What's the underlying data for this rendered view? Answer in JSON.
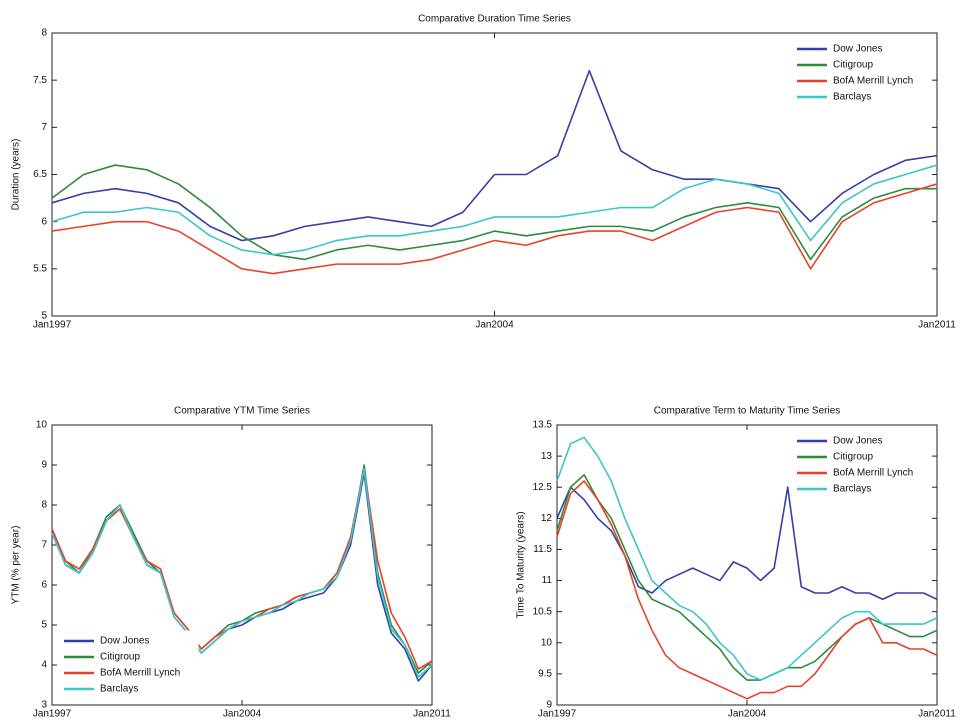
{
  "chart_data": [
    {
      "type": "line",
      "title": "Comparative Duration Time Series",
      "ylabel": "Duration (years)",
      "x": [
        1997,
        1997.5,
        1998,
        1998.5,
        1999,
        1999.5,
        2000,
        2000.5,
        2001,
        2001.5,
        2002,
        2002.5,
        2003,
        2003.5,
        2004,
        2004.5,
        2005,
        2005.5,
        2006,
        2006.5,
        2007,
        2007.5,
        2008,
        2008.5,
        2009,
        2009.5,
        2010,
        2010.5,
        2011
      ],
      "xlim": [
        1997,
        2011
      ],
      "xticks": [
        {
          "value": 1997,
          "label": "Jan1997"
        },
        {
          "value": 2004,
          "label": "Jan2004"
        },
        {
          "value": 2011,
          "label": "Jan2011"
        }
      ],
      "ylim": [
        5,
        8
      ],
      "yticks": [
        5,
        5.5,
        6,
        6.5,
        7,
        7.5,
        8
      ],
      "legend": "upper right",
      "grid": false,
      "series": [
        {
          "name": "Dow Jones",
          "color": "#3340a8",
          "values": [
            6.2,
            6.3,
            6.35,
            6.3,
            6.2,
            5.95,
            5.8,
            5.85,
            5.95,
            6.0,
            6.05,
            6.0,
            5.95,
            6.1,
            6.5,
            6.5,
            6.7,
            7.6,
            6.75,
            6.55,
            6.45,
            6.45,
            6.4,
            6.35,
            6.0,
            6.3,
            6.5,
            6.65,
            6.7
          ]
        },
        {
          "name": "Citigroup",
          "color": "#2e8b3a",
          "values": [
            6.25,
            6.5,
            6.6,
            6.55,
            6.4,
            6.15,
            5.85,
            5.65,
            5.6,
            5.7,
            5.75,
            5.7,
            5.75,
            5.8,
            5.9,
            5.85,
            5.9,
            5.95,
            5.95,
            5.9,
            6.05,
            6.15,
            6.2,
            6.15,
            5.6,
            6.05,
            6.25,
            6.35,
            6.35
          ]
        },
        {
          "name": "BofA Merrill Lynch",
          "color": "#e8432a",
          "values": [
            5.9,
            5.95,
            6.0,
            6.0,
            5.9,
            5.7,
            5.5,
            5.45,
            5.5,
            5.55,
            5.55,
            5.55,
            5.6,
            5.7,
            5.8,
            5.75,
            5.85,
            5.9,
            5.9,
            5.8,
            5.95,
            6.1,
            6.15,
            6.1,
            5.5,
            6.0,
            6.2,
            6.3,
            6.4
          ]
        },
        {
          "name": "Barclays",
          "color": "#3cc6c8",
          "values": [
            6.0,
            6.1,
            6.1,
            6.15,
            6.1,
            5.85,
            5.7,
            5.65,
            5.7,
            5.8,
            5.85,
            5.85,
            5.9,
            5.95,
            6.05,
            6.05,
            6.05,
            6.1,
            6.15,
            6.15,
            6.35,
            6.45,
            6.4,
            6.3,
            5.8,
            6.2,
            6.4,
            6.5,
            6.6
          ]
        }
      ]
    },
    {
      "type": "line",
      "title": "Comparative YTM Time Series",
      "ylabel": "YTM (% per year)",
      "x": [
        1997,
        1997.5,
        1998,
        1998.5,
        1999,
        1999.5,
        2000,
        2000.5,
        2001,
        2001.5,
        2002,
        2002.5,
        2003,
        2003.5,
        2004,
        2004.5,
        2005,
        2005.5,
        2006,
        2006.5,
        2007,
        2007.5,
        2008,
        2008.5,
        2009,
        2009.5,
        2010,
        2010.5,
        2011
      ],
      "xlim": [
        1997,
        2011
      ],
      "xticks": [
        {
          "value": 1997,
          "label": "Jan1997"
        },
        {
          "value": 2004,
          "label": "Jan2004"
        },
        {
          "value": 2011,
          "label": "Jan2011"
        }
      ],
      "ylim": [
        3,
        10
      ],
      "yticks": [
        3,
        4,
        5,
        6,
        7,
        8,
        9,
        10
      ],
      "legend": "lower left",
      "grid": false,
      "series": [
        {
          "name": "Dow Jones",
          "color": "#3340a8",
          "values": [
            7.3,
            6.5,
            6.3,
            6.8,
            7.6,
            8.0,
            7.2,
            6.5,
            6.3,
            5.2,
            4.8,
            4.3,
            4.6,
            4.9,
            5.0,
            5.2,
            5.3,
            5.4,
            5.6,
            5.7,
            5.8,
            6.2,
            7.0,
            8.8,
            6.0,
            4.8,
            4.4,
            3.6,
            4.0
          ]
        },
        {
          "name": "Citigroup",
          "color": "#2e8b3a",
          "values": [
            7.4,
            6.6,
            6.3,
            6.9,
            7.7,
            8.0,
            7.3,
            6.6,
            6.3,
            5.3,
            4.9,
            4.4,
            4.7,
            5.0,
            5.1,
            5.3,
            5.4,
            5.5,
            5.7,
            5.8,
            5.9,
            6.3,
            7.1,
            9.0,
            6.3,
            5.0,
            4.5,
            3.8,
            4.1
          ]
        },
        {
          "name": "BofA Merrill Lynch",
          "color": "#e8432a",
          "values": [
            7.4,
            6.6,
            6.4,
            6.9,
            7.6,
            7.9,
            7.2,
            6.6,
            6.4,
            5.3,
            4.9,
            4.4,
            4.7,
            4.9,
            5.1,
            5.2,
            5.4,
            5.5,
            5.7,
            5.8,
            5.9,
            6.3,
            7.2,
            8.9,
            6.6,
            5.3,
            4.7,
            3.9,
            4.1
          ]
        },
        {
          "name": "Barclays",
          "color": "#3cc6c8",
          "values": [
            7.3,
            6.5,
            6.3,
            6.8,
            7.6,
            8.0,
            7.2,
            6.5,
            6.3,
            5.2,
            4.8,
            4.3,
            4.6,
            4.9,
            5.1,
            5.2,
            5.3,
            5.5,
            5.6,
            5.8,
            5.9,
            6.2,
            7.1,
            8.9,
            6.2,
            4.9,
            4.5,
            3.7,
            4.0
          ]
        }
      ]
    },
    {
      "type": "line",
      "title": "Comparative Term to Maturity Time Series",
      "ylabel": "Time To Maturity (years)",
      "x": [
        1997,
        1997.5,
        1998,
        1998.5,
        1999,
        1999.5,
        2000,
        2000.5,
        2001,
        2001.5,
        2002,
        2002.5,
        2003,
        2003.5,
        2004,
        2004.5,
        2005,
        2005.5,
        2006,
        2006.5,
        2007,
        2007.5,
        2008,
        2008.5,
        2009,
        2009.5,
        2010,
        2010.5,
        2011
      ],
      "xlim": [
        1997,
        2011
      ],
      "xticks": [
        {
          "value": 1997,
          "label": "Jan1997"
        },
        {
          "value": 2004,
          "label": "Jan2004"
        },
        {
          "value": 2011,
          "label": "Jan2011"
        }
      ],
      "ylim": [
        9,
        13.5
      ],
      "yticks": [
        9,
        9.5,
        10,
        10.5,
        11,
        11.5,
        12,
        12.5,
        13,
        13.5
      ],
      "legend": "upper right",
      "grid": false,
      "series": [
        {
          "name": "Dow Jones",
          "color": "#3340a8",
          "values": [
            12.0,
            12.5,
            12.3,
            12.0,
            11.8,
            11.4,
            10.9,
            10.8,
            11.0,
            11.1,
            11.2,
            11.1,
            11.0,
            11.3,
            11.2,
            11.0,
            11.2,
            12.5,
            10.9,
            10.8,
            10.8,
            10.9,
            10.8,
            10.8,
            10.7,
            10.8,
            10.8,
            10.8,
            10.7
          ]
        },
        {
          "name": "Citigroup",
          "color": "#2e8b3a",
          "values": [
            11.8,
            12.5,
            12.7,
            12.3,
            12.0,
            11.5,
            11.0,
            10.7,
            10.6,
            10.5,
            10.3,
            10.1,
            9.9,
            9.6,
            9.4,
            9.4,
            9.5,
            9.6,
            9.6,
            9.7,
            9.9,
            10.1,
            10.3,
            10.4,
            10.3,
            10.2,
            10.1,
            10.1,
            10.2
          ]
        },
        {
          "name": "BofA Merrill Lynch",
          "color": "#e8432a",
          "values": [
            11.7,
            12.4,
            12.6,
            12.3,
            11.9,
            11.4,
            10.7,
            10.2,
            9.8,
            9.6,
            9.5,
            9.4,
            9.3,
            9.2,
            9.1,
            9.2,
            9.2,
            9.3,
            9.3,
            9.5,
            9.8,
            10.1,
            10.3,
            10.4,
            10.0,
            10.0,
            9.9,
            9.9,
            9.8
          ]
        },
        {
          "name": "Barclays",
          "color": "#3cc6c8",
          "values": [
            12.6,
            13.2,
            13.3,
            13.0,
            12.6,
            12.0,
            11.5,
            11.0,
            10.8,
            10.6,
            10.5,
            10.3,
            10.0,
            9.8,
            9.5,
            9.4,
            9.5,
            9.6,
            9.8,
            10.0,
            10.2,
            10.4,
            10.5,
            10.5,
            10.3,
            10.3,
            10.3,
            10.3,
            10.4
          ]
        }
      ]
    }
  ]
}
